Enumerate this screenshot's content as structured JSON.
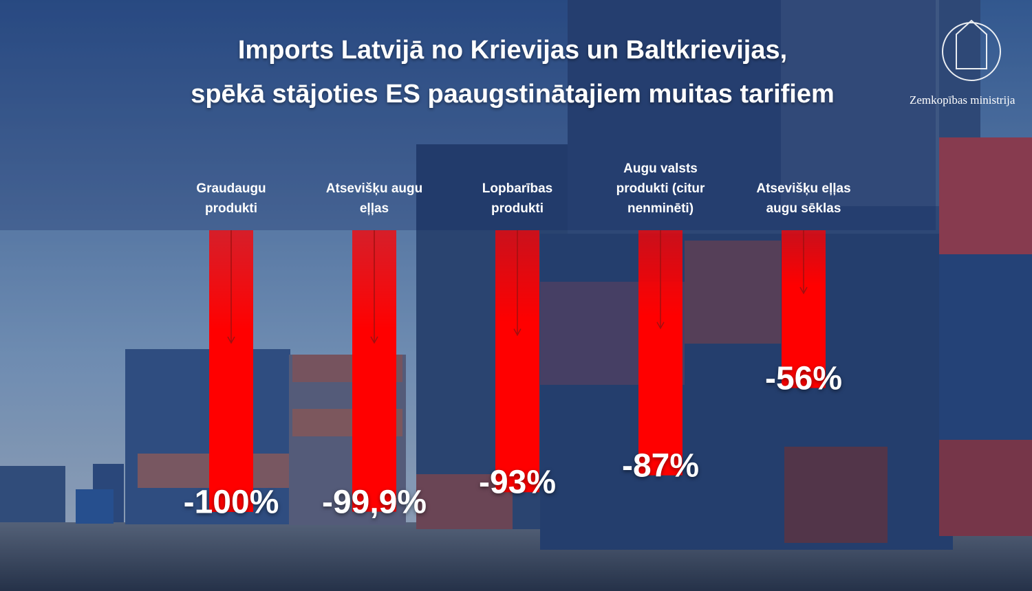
{
  "chart_data": {
    "type": "bar",
    "title": [
      "Imports Latvijā no Krievijas un Baltkrievijas,",
      "spēkā stājoties ES paaugstinātajiem muitas tarifiem"
    ],
    "logo_text": "Zemkopības ministrija",
    "categories": [
      "Graudaugu produkti",
      "Atsevišķu augu eļļas",
      "Lopbarības produkti",
      "Augu valsts produkti (citur nenminēti)",
      "Atsevišķu eļļas augu sēklas"
    ],
    "values": [
      -100,
      -99.9,
      -93,
      -87,
      -56
    ],
    "value_labels": [
      "-100%",
      "-99,9%",
      "-93%",
      "-87%",
      "-56%"
    ],
    "color": "#ff0000",
    "ylim": [
      -100,
      0
    ]
  }
}
